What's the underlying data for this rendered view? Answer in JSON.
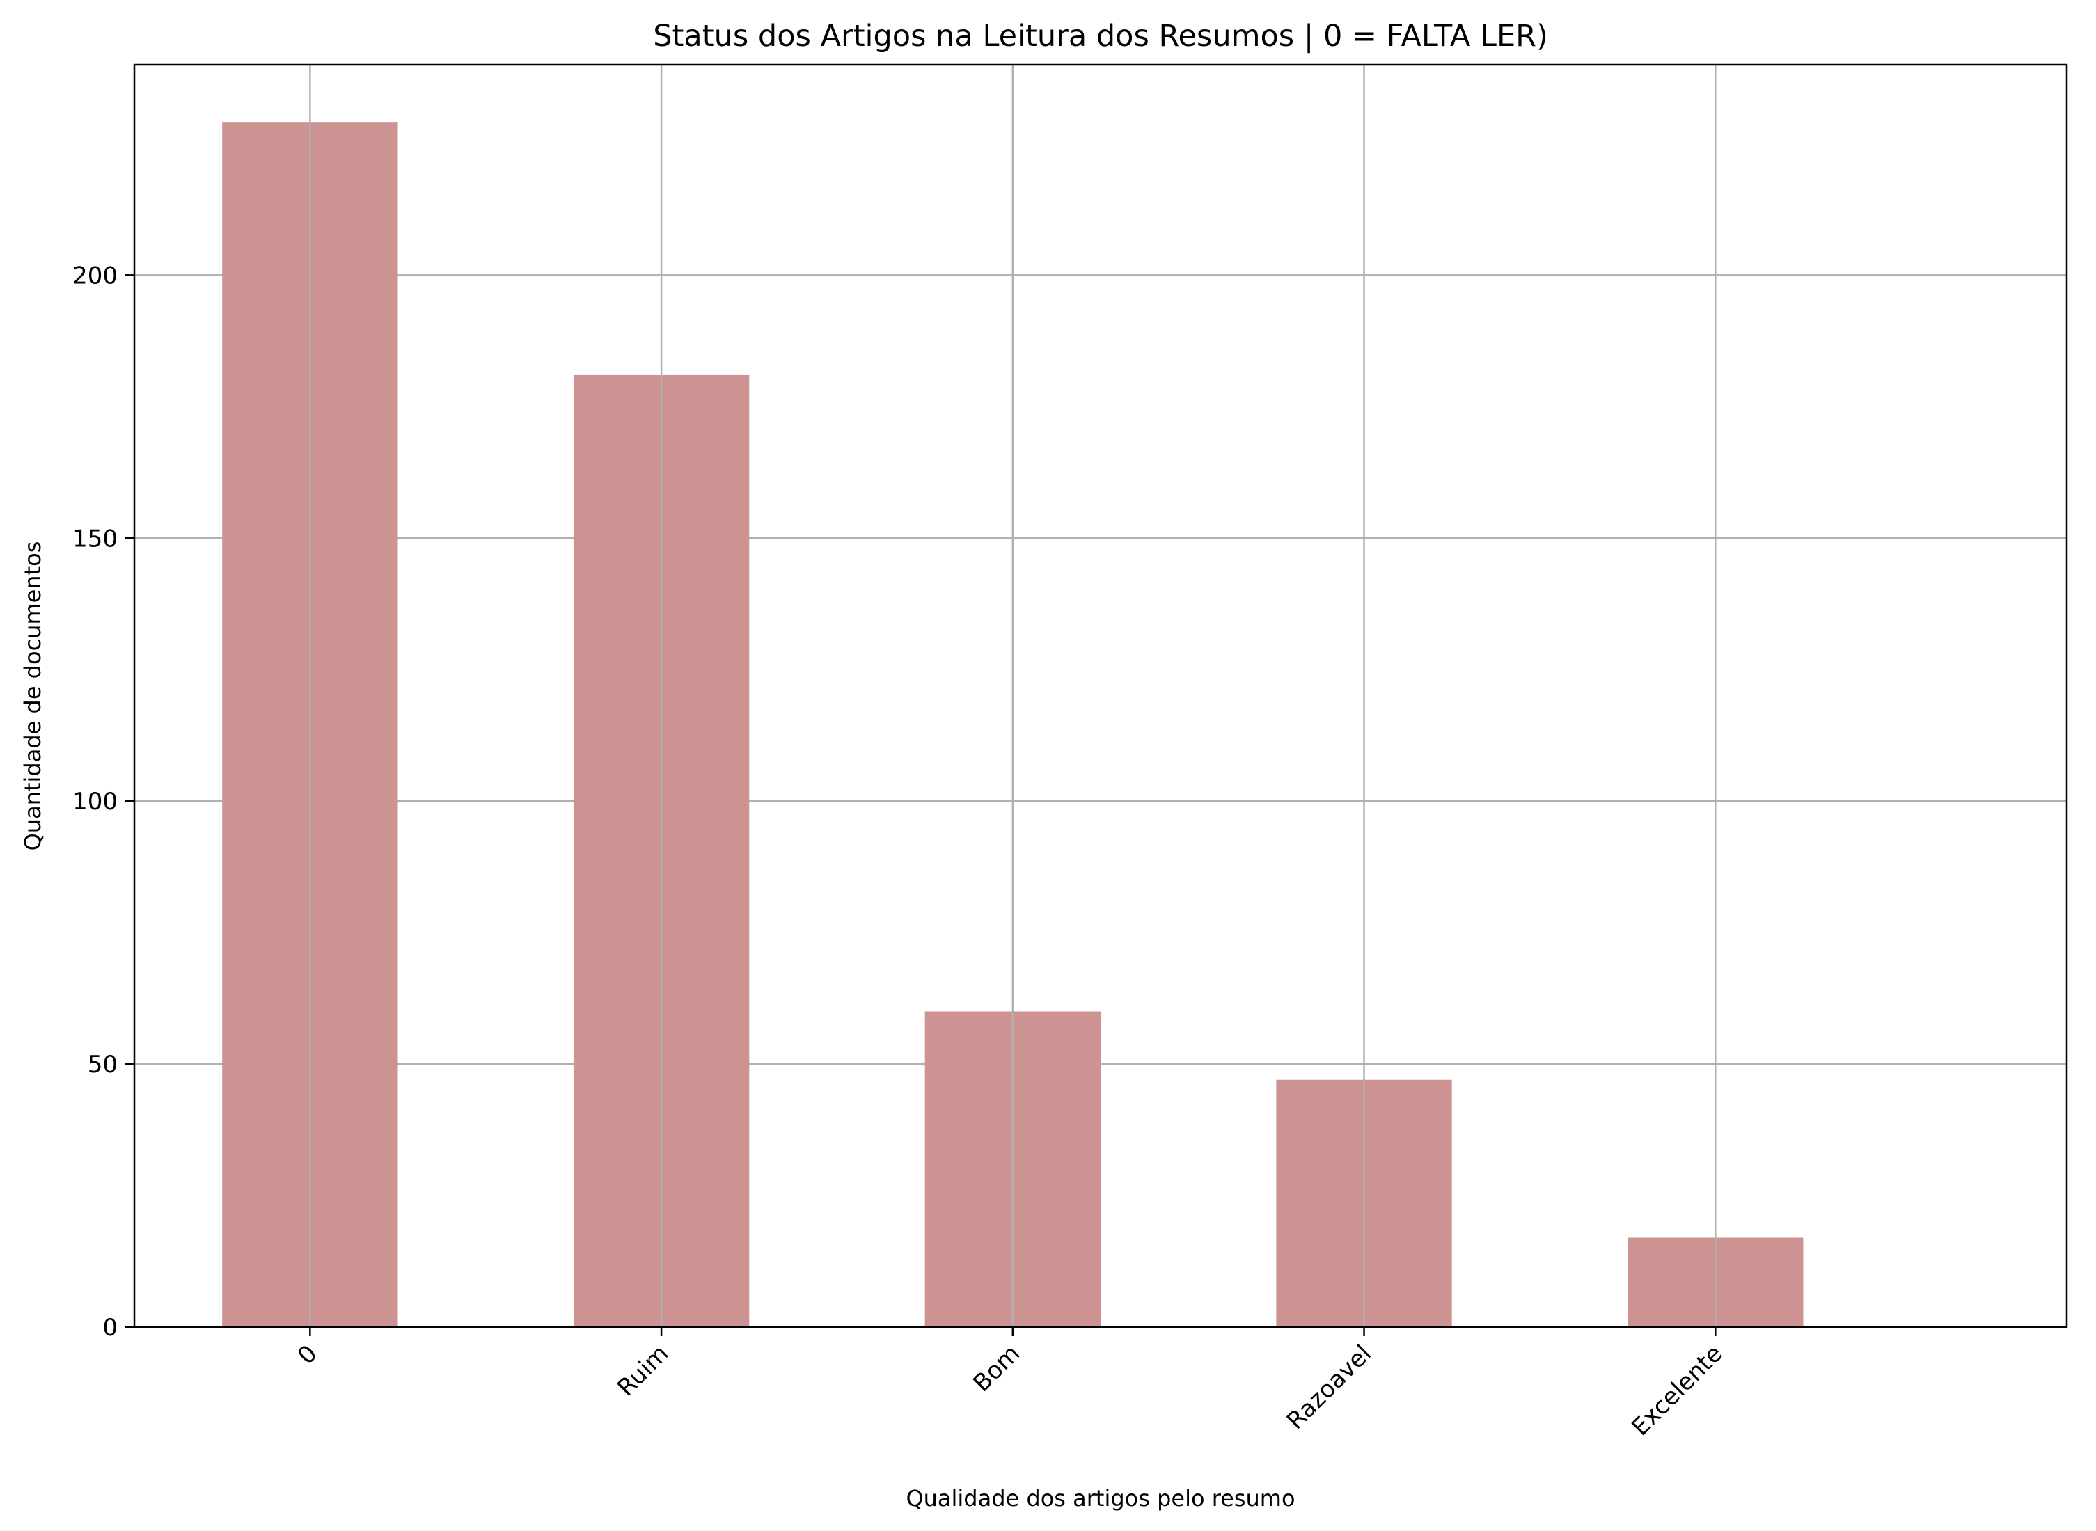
{
  "chart_data": {
    "type": "bar",
    "title": "Status dos Artigos na Leitura dos Resumos | 0 = FALTA LER)",
    "xlabel": "Qualidade dos artigos pelo resumo",
    "ylabel": "Quantidade de documentos",
    "categories": [
      "0",
      "Ruim",
      "Bom",
      "Razoavel",
      "Excelente"
    ],
    "values": [
      229,
      181,
      60,
      47,
      17
    ],
    "ylim": [
      0,
      240
    ],
    "yticks": [
      0,
      50,
      100,
      150,
      200
    ],
    "grid": true,
    "bar_color": "#cd9393",
    "grid_color": "#b0b0b0",
    "legend": "none"
  }
}
